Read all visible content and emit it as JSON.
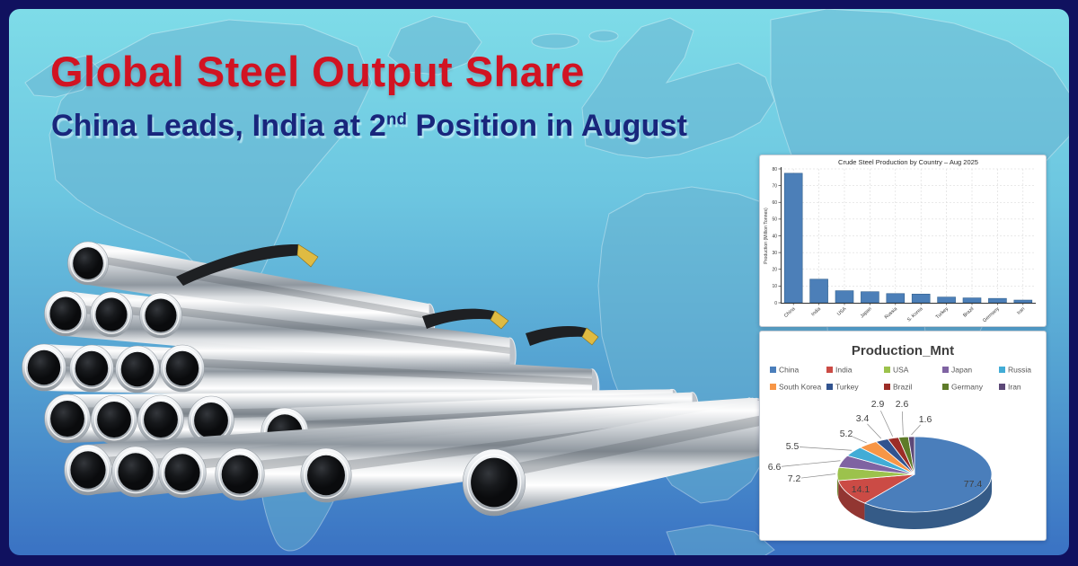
{
  "header": {
    "title": "Global Steel Output Share",
    "subtitle_prefix": "China Leads, India at 2",
    "subtitle_sup": "nd",
    "subtitle_suffix": " Position in August",
    "title_color": "#d11322",
    "subtitle_color": "#19267c"
  },
  "theme": {
    "frame_color": "#10115f",
    "bg_top": "#7edce8",
    "bg_bottom": "#3a72c3",
    "map_fill": "#68b2cf",
    "panel_bg": "#ffffff"
  },
  "illustration": {
    "name": "stacked-steel-pipes"
  },
  "chart_data": [
    {
      "type": "bar",
      "title": "Crude Steel Production by Country – Aug 2025",
      "xlabel": "",
      "ylabel": "Production (Million Tonnes)",
      "categories": [
        "China",
        "India",
        "USA",
        "Japan",
        "Russia",
        "S. Korea",
        "Turkey",
        "Brazil",
        "Germany",
        "Iran"
      ],
      "values": [
        77.4,
        14.1,
        7.2,
        6.6,
        5.5,
        5.2,
        3.4,
        2.9,
        2.6,
        1.6
      ],
      "ylim": [
        0,
        80
      ],
      "yticks": [
        0,
        10,
        20,
        30,
        40,
        50,
        60,
        70,
        80
      ],
      "grid": true,
      "legend_position": "none",
      "bar_color": "#4c7fb8",
      "bar_edge_color": "#33618e"
    },
    {
      "type": "pie",
      "style": "3d",
      "title": "Production_Mnt",
      "labels": [
        "China",
        "India",
        "USA",
        "Japan",
        "Russia",
        "South Korea",
        "Turkey",
        "Brazil",
        "Germany",
        "Iran"
      ],
      "values": [
        77.4,
        14.1,
        7.2,
        6.6,
        5.5,
        5.2,
        3.4,
        2.9,
        2.6,
        1.6
      ],
      "colors": [
        "#4a7ebb",
        "#cb4b45",
        "#9cc24c",
        "#7f63a2",
        "#42acd6",
        "#f79646",
        "#31538f",
        "#9c2d27",
        "#5e7b29",
        "#5c4877"
      ],
      "legend_position": "top",
      "legend_columns": 5,
      "label_hints": [
        {
          "x": 237,
          "y": 170,
          "placement": "inside"
        },
        {
          "x": 112,
          "y": 176,
          "placement": "inside"
        },
        {
          "x": 38,
          "y": 164,
          "placement": "outside"
        },
        {
          "x": 16,
          "y": 151,
          "placement": "outside"
        },
        {
          "x": 36,
          "y": 128,
          "placement": "outside"
        },
        {
          "x": 96,
          "y": 114,
          "placement": "outside"
        },
        {
          "x": 114,
          "y": 97,
          "placement": "outside"
        },
        {
          "x": 131,
          "y": 81,
          "placement": "outside"
        },
        {
          "x": 158,
          "y": 81,
          "placement": "outside"
        },
        {
          "x": 184,
          "y": 98,
          "placement": "outside"
        }
      ]
    }
  ]
}
